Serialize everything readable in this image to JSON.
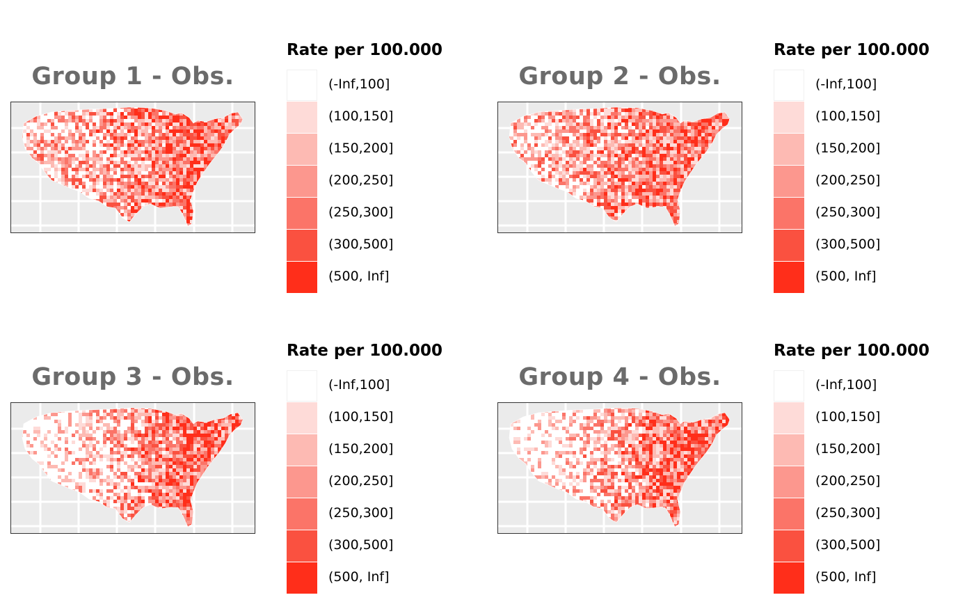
{
  "legend": {
    "title": "Rate per 100.000",
    "classes": [
      {
        "label": "(-Inf,100]",
        "color": "#ffffff"
      },
      {
        "label": "(100,150]",
        "color": "#fedbd8"
      },
      {
        "label": "(150,200]",
        "color": "#fdbab3"
      },
      {
        "label": "(200,250]",
        "color": "#fc978e"
      },
      {
        "label": "(250,300]",
        "color": "#fb7468"
      },
      {
        "label": "(300,500]",
        "color": "#fa5140"
      },
      {
        "label": "(500, Inf]",
        "color": "#ff2e1a"
      }
    ]
  },
  "panels": [
    {
      "title": "Group 1 - Obs.",
      "map_subject": "US counties choropleth",
      "dominant_classes": "mixed; many (300,500]/(500, Inf] counties in the north-central and east; white areas in Nevada/Utah"
    },
    {
      "title": "Group 2 - Obs.",
      "map_subject": "US counties choropleth",
      "dominant_classes": "mixed; widespread (150,200]-(300,500] counties; white patches in the west"
    },
    {
      "title": "Group 3 - Obs.",
      "map_subject": "US counties choropleth",
      "dominant_classes": "west mostly (-Inf,100] white; east dense (200,250]-(500, Inf]"
    },
    {
      "title": "Group 4 - Obs.",
      "map_subject": "US counties choropleth",
      "dominant_classes": "west mostly (-Inf,100] white; east dense (200,250]-(500, Inf]"
    }
  ],
  "map_style": {
    "panel_background": "#ebebeb",
    "gridline": "#ffffff",
    "frame": "#333333",
    "title_color": "#6b6b6b"
  }
}
